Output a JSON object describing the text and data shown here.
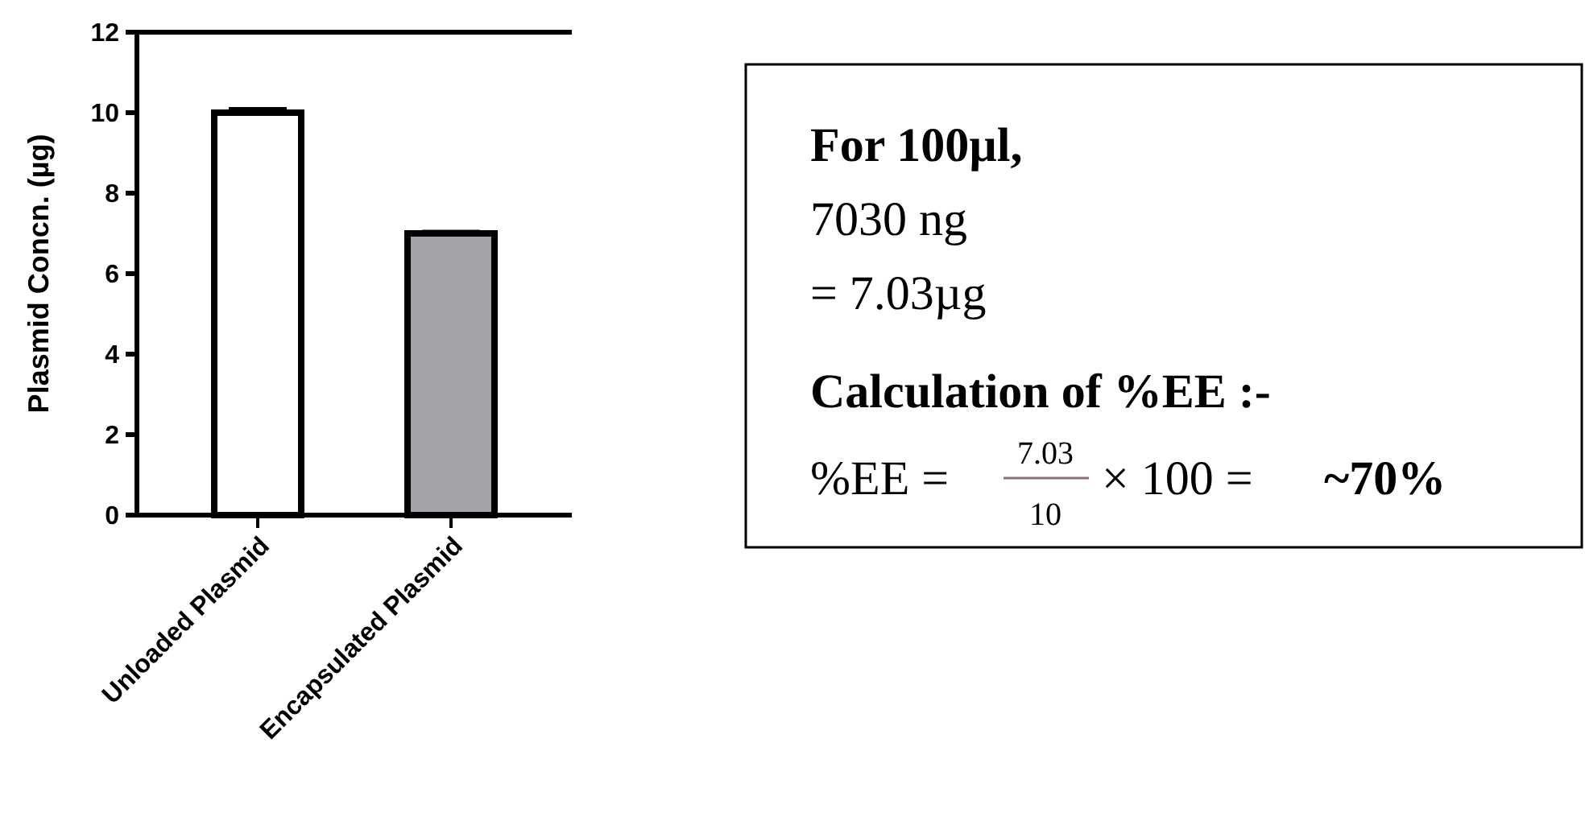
{
  "chart_data": {
    "type": "bar",
    "ylabel": "Plasmid Concn. (µg)",
    "categories": [
      "Unloaded Plasmid",
      "Encapsulated Plasmid"
    ],
    "values": [
      10,
      7.0
    ],
    "errors": [
      0.1,
      0.05
    ],
    "colors": [
      "#ffffff",
      "#a3a3a8"
    ],
    "ylim": [
      0,
      12
    ],
    "yticks": [
      0,
      2,
      4,
      6,
      8,
      10,
      12
    ],
    "grid": false,
    "annotations": [
      "For 100µl,",
      "7030 ng",
      "= 7.03µg",
      "Calculation of %EE :-",
      "%EE =",
      "7.03",
      "10",
      "× 100 =",
      "~70%"
    ]
  }
}
